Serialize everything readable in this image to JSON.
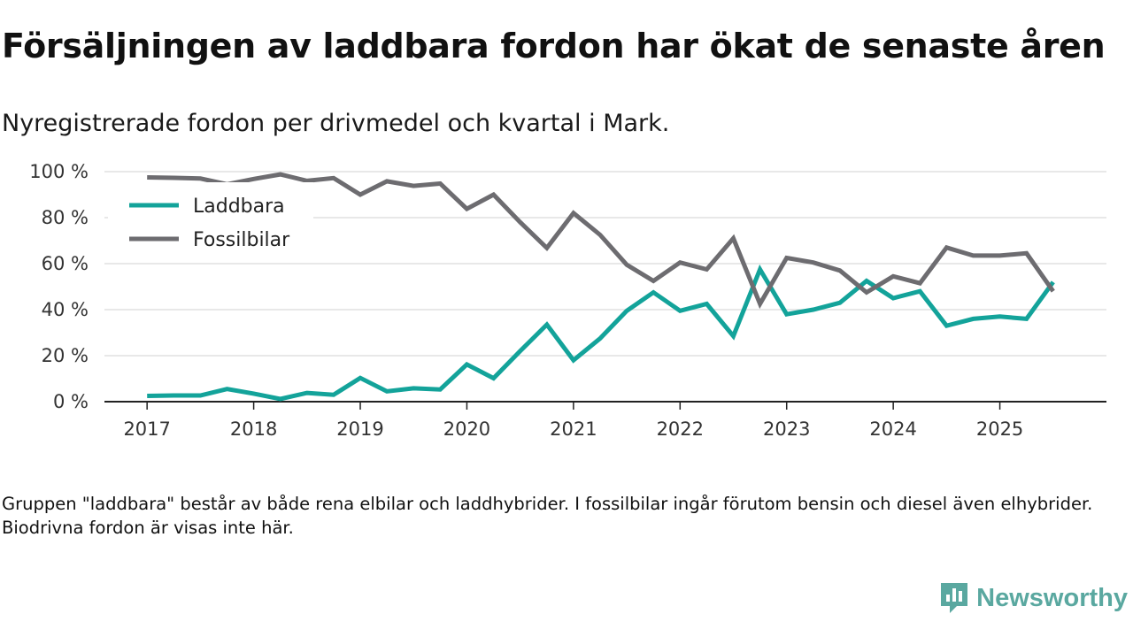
{
  "header": {
    "title": "Försäljningen av laddbara fordon har ökat de senaste åren",
    "subtitle": "Nyregistrerade fordon per drivmedel och kvartal i Mark."
  },
  "footer": {
    "note": "Gruppen \"laddbara\" består av både rena elbilar och laddhybrider. I fossilbilar ingår förutom bensin och diesel även elhybrider. Biodrivna fordon är visas inte här.",
    "brand": "Newsworthy",
    "brand_color": "#5aa8a0"
  },
  "chart_data": {
    "type": "line",
    "title": "Försäljningen av laddbara fordon har ökat de senaste åren",
    "subtitle": "Nyregistrerade fordon per drivmedel och kvartal i Mark.",
    "xlabel": "",
    "ylabel": "",
    "x": [
      2017,
      2017.25,
      2017.5,
      2017.75,
      2018,
      2018.25,
      2018.5,
      2018.75,
      2019,
      2019.25,
      2019.5,
      2019.75,
      2020,
      2020.25,
      2020.5,
      2020.75,
      2021,
      2021.25,
      2021.5,
      2021.75,
      2022,
      2022.25,
      2022.5,
      2022.75,
      2023,
      2023.25,
      2023.5,
      2023.75,
      2024,
      2024.25,
      2024.5,
      2024.75,
      2025,
      2025.25,
      2025.5
    ],
    "series": [
      {
        "name": "Laddbara",
        "color": "#13a39a",
        "values": [
          2.5,
          2.7,
          2.7,
          5.5,
          3.5,
          1.2,
          3.8,
          3.0,
          10.3,
          4.5,
          5.8,
          5.3,
          16.2,
          10.2,
          22.0,
          33.5,
          18.0,
          27.5,
          39.5,
          47.5,
          39.5,
          42.5,
          28.5,
          57.5,
          38.0,
          40.0,
          43.0,
          52.5,
          45.0,
          48.0,
          33.0,
          36.0,
          37.0,
          36.0,
          52.0
        ]
      },
      {
        "name": "Fossilbilar",
        "color": "#6d6c70",
        "values": [
          97.5,
          97.3,
          97.0,
          94.5,
          96.8,
          98.8,
          96.0,
          97.2,
          90.0,
          95.8,
          93.8,
          94.8,
          83.8,
          90.0,
          78.0,
          66.8,
          82.0,
          72.5,
          59.5,
          52.5,
          60.5,
          57.5,
          71.0,
          42.5,
          62.5,
          60.5,
          57.0,
          47.5,
          54.5,
          51.5,
          67.0,
          63.5,
          63.5,
          64.5,
          48.0
        ]
      }
    ],
    "xticks": [
      2017,
      2018,
      2019,
      2020,
      2021,
      2022,
      2023,
      2024,
      2025
    ],
    "xtick_labels": [
      "2017",
      "2018",
      "2019",
      "2020",
      "2021",
      "2022",
      "2023",
      "2024",
      "2025"
    ],
    "yticks": [
      0,
      20,
      40,
      60,
      80,
      100
    ],
    "ytick_labels": [
      "0 %",
      "20 %",
      "40 %",
      "60 %",
      "80 %",
      "100 %"
    ],
    "xlim": [
      2016.6,
      2026.0
    ],
    "ylim": [
      0,
      100
    ],
    "grid": true,
    "legend_position": "top-left"
  }
}
